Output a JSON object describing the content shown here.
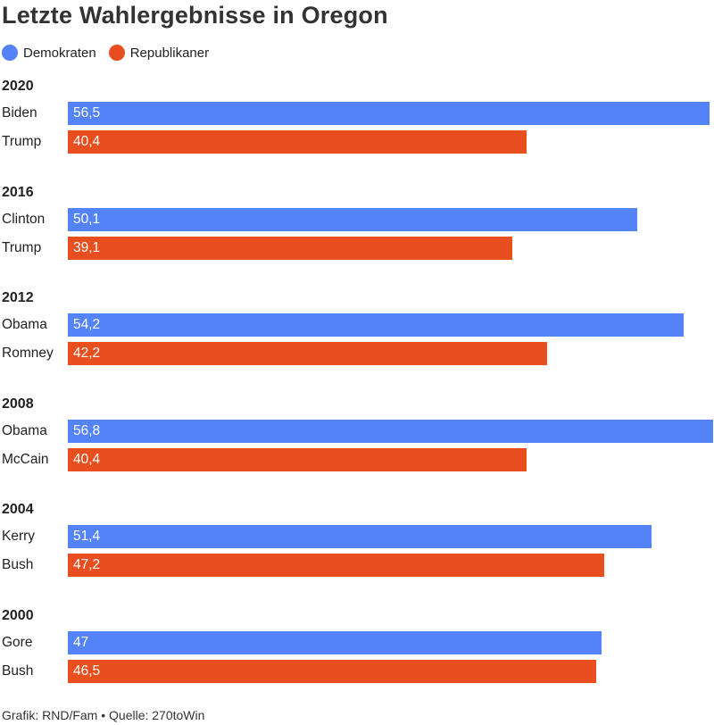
{
  "title": "Letzte Wahlergebnisse in Oregon",
  "legend": [
    {
      "label": "Demokraten",
      "color": "#5383f7"
    },
    {
      "label": "Republikaner",
      "color": "#e84e1e"
    }
  ],
  "footer": "Grafik: RND/Fam • Quelle: 270toWin",
  "chart_data": {
    "type": "bar",
    "orientation": "horizontal",
    "groups": [
      {
        "year": "2020",
        "entries": [
          {
            "candidate": "Biden",
            "party": "Demokraten",
            "value": 56.5,
            "label": "56,5"
          },
          {
            "candidate": "Trump",
            "party": "Republikaner",
            "value": 40.4,
            "label": "40,4"
          }
        ]
      },
      {
        "year": "2016",
        "entries": [
          {
            "candidate": "Clinton",
            "party": "Demokraten",
            "value": 50.1,
            "label": "50,1"
          },
          {
            "candidate": "Trump",
            "party": "Republikaner",
            "value": 39.1,
            "label": "39,1"
          }
        ]
      },
      {
        "year": "2012",
        "entries": [
          {
            "candidate": "Obama",
            "party": "Demokraten",
            "value": 54.2,
            "label": "54,2"
          },
          {
            "candidate": "Romney",
            "party": "Republikaner",
            "value": 42.2,
            "label": "42,2"
          }
        ]
      },
      {
        "year": "2008",
        "entries": [
          {
            "candidate": "Obama",
            "party": "Demokraten",
            "value": 56.8,
            "label": "56,8"
          },
          {
            "candidate": "McCain",
            "party": "Republikaner",
            "value": 40.4,
            "label": "40,4"
          }
        ]
      },
      {
        "year": "2004",
        "entries": [
          {
            "candidate": "Kerry",
            "party": "Demokraten",
            "value": 51.4,
            "label": "51,4"
          },
          {
            "candidate": "Bush",
            "party": "Republikaner",
            "value": 47.2,
            "label": "47,2"
          }
        ]
      },
      {
        "year": "2000",
        "entries": [
          {
            "candidate": "Gore",
            "party": "Demokraten",
            "value": 47,
            "label": "47"
          },
          {
            "candidate": "Bush",
            "party": "Republikaner",
            "value": 46.5,
            "label": "46,5"
          }
        ]
      }
    ],
    "xlim": [
      0,
      56.8
    ],
    "legend_position": "top-left",
    "grid": false
  }
}
